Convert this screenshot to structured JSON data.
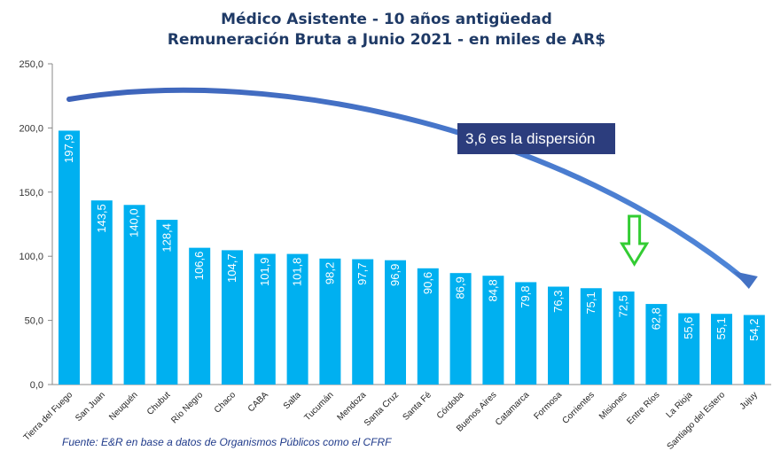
{
  "chart_data": {
    "type": "bar",
    "title": "Médico Asistente - 10 años antigüedad",
    "subtitle": "Remuneración Bruta a Junio 2021 - en miles de AR$",
    "categories": [
      "Tierra del Fuego",
      "San Juan",
      "Neuquén",
      "Chubut",
      "Río Negro",
      "Chaco",
      "CABA",
      "Salta",
      "Tucumán",
      "Mendoza",
      "Santa Cruz",
      "Santa Fé",
      "Córdoba",
      "Buenos Aires",
      "Catamarca",
      "Formosa",
      "Corrientes",
      "Misiones",
      "Entre Ríos",
      "La Rioja",
      "Santiago del Estero",
      "Jujuy"
    ],
    "values": [
      197.9,
      143.5,
      140.0,
      128.4,
      106.6,
      104.7,
      101.9,
      101.8,
      98.2,
      97.7,
      96.9,
      90.6,
      86.9,
      84.8,
      79.8,
      76.3,
      75.1,
      72.5,
      62.8,
      55.6,
      55.1,
      54.2
    ],
    "value_labels": [
      "197,9",
      "143,5",
      "140,0",
      "128,4",
      "106,6",
      "104,7",
      "101,9",
      "101,8",
      "98,2",
      "97,7",
      "96,9",
      "90,6",
      "86,9",
      "84,8",
      "79,8",
      "76,3",
      "75,1",
      "72,5",
      "62,8",
      "55,6",
      "55,1",
      "54,2"
    ],
    "yticks": [
      "0,0",
      "50,0",
      "100,0",
      "150,0",
      "200,0",
      "250,0"
    ],
    "ylim": [
      0,
      250
    ],
    "grid": false,
    "bar_color": "#00b0f0",
    "annotation": "3,6 es la dispersión",
    "highlight_category": "Misiones",
    "source": "Fuente: E&R en base a datos de Organismos Públicos como el CFRF"
  },
  "colors": {
    "title": "#1f3a66",
    "callout_bg": "#2c3d7d",
    "arrow": "#4472c4",
    "down_arrow": "#33cc33",
    "source_text": "#1f3a8a"
  }
}
